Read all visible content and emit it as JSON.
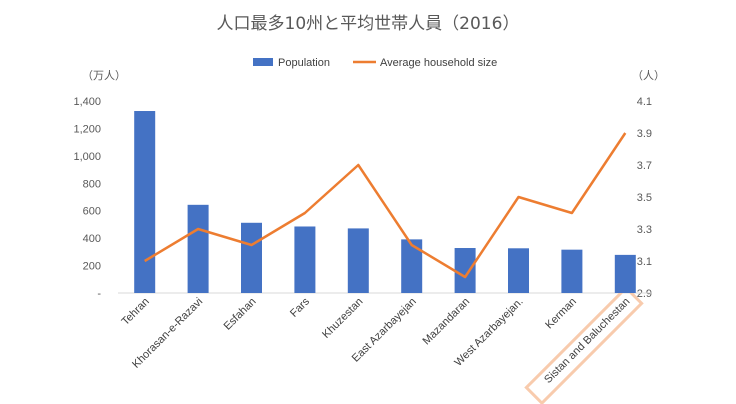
{
  "chart_data": {
    "type": "bar",
    "title": "人口最多10州と平均世帯人員（2016）",
    "y_left_unit": "（万人）",
    "y_right_unit": "（人）",
    "categories": [
      "Tehran",
      "Khorasan-e-Razavi",
      "Esfahan",
      "Fars",
      "Khuzestan",
      "East Azarbayejan",
      "Mazandaran",
      "West Azarbayejan.",
      "Kerman",
      "Sistan and Baluchestan"
    ],
    "series": [
      {
        "name": "Population",
        "type": "bar",
        "axis": "left",
        "color": "#4472C4",
        "values": [
          1327,
          643,
          512,
          485,
          471,
          391,
          328,
          326,
          316,
          278
        ]
      },
      {
        "name": "Average household size",
        "type": "line",
        "axis": "right",
        "color": "#ED7D31",
        "values": [
          3.1,
          3.3,
          3.2,
          3.4,
          3.7,
          3.2,
          3.0,
          3.5,
          3.4,
          3.9
        ]
      }
    ],
    "y_left": {
      "range": [
        0,
        1400
      ],
      "ticks": [
        0,
        200,
        400,
        600,
        800,
        1000,
        1200,
        1400
      ],
      "tick_labels": [
        "-",
        "200",
        "400",
        "600",
        "800",
        "1,000",
        "1,200",
        "1,400"
      ]
    },
    "y_right": {
      "range": [
        2.9,
        4.1
      ],
      "ticks": [
        2.9,
        3.1,
        3.3,
        3.5,
        3.7,
        3.9,
        4.1
      ],
      "tick_labels": [
        "2.9",
        "3.1",
        "3.3",
        "3.5",
        "3.7",
        "3.9",
        "4.1"
      ]
    },
    "grid": false,
    "legend_position": "top",
    "highlighted_category": "Sistan and Baluchestan",
    "highlight_color": "#F8CBAD"
  }
}
